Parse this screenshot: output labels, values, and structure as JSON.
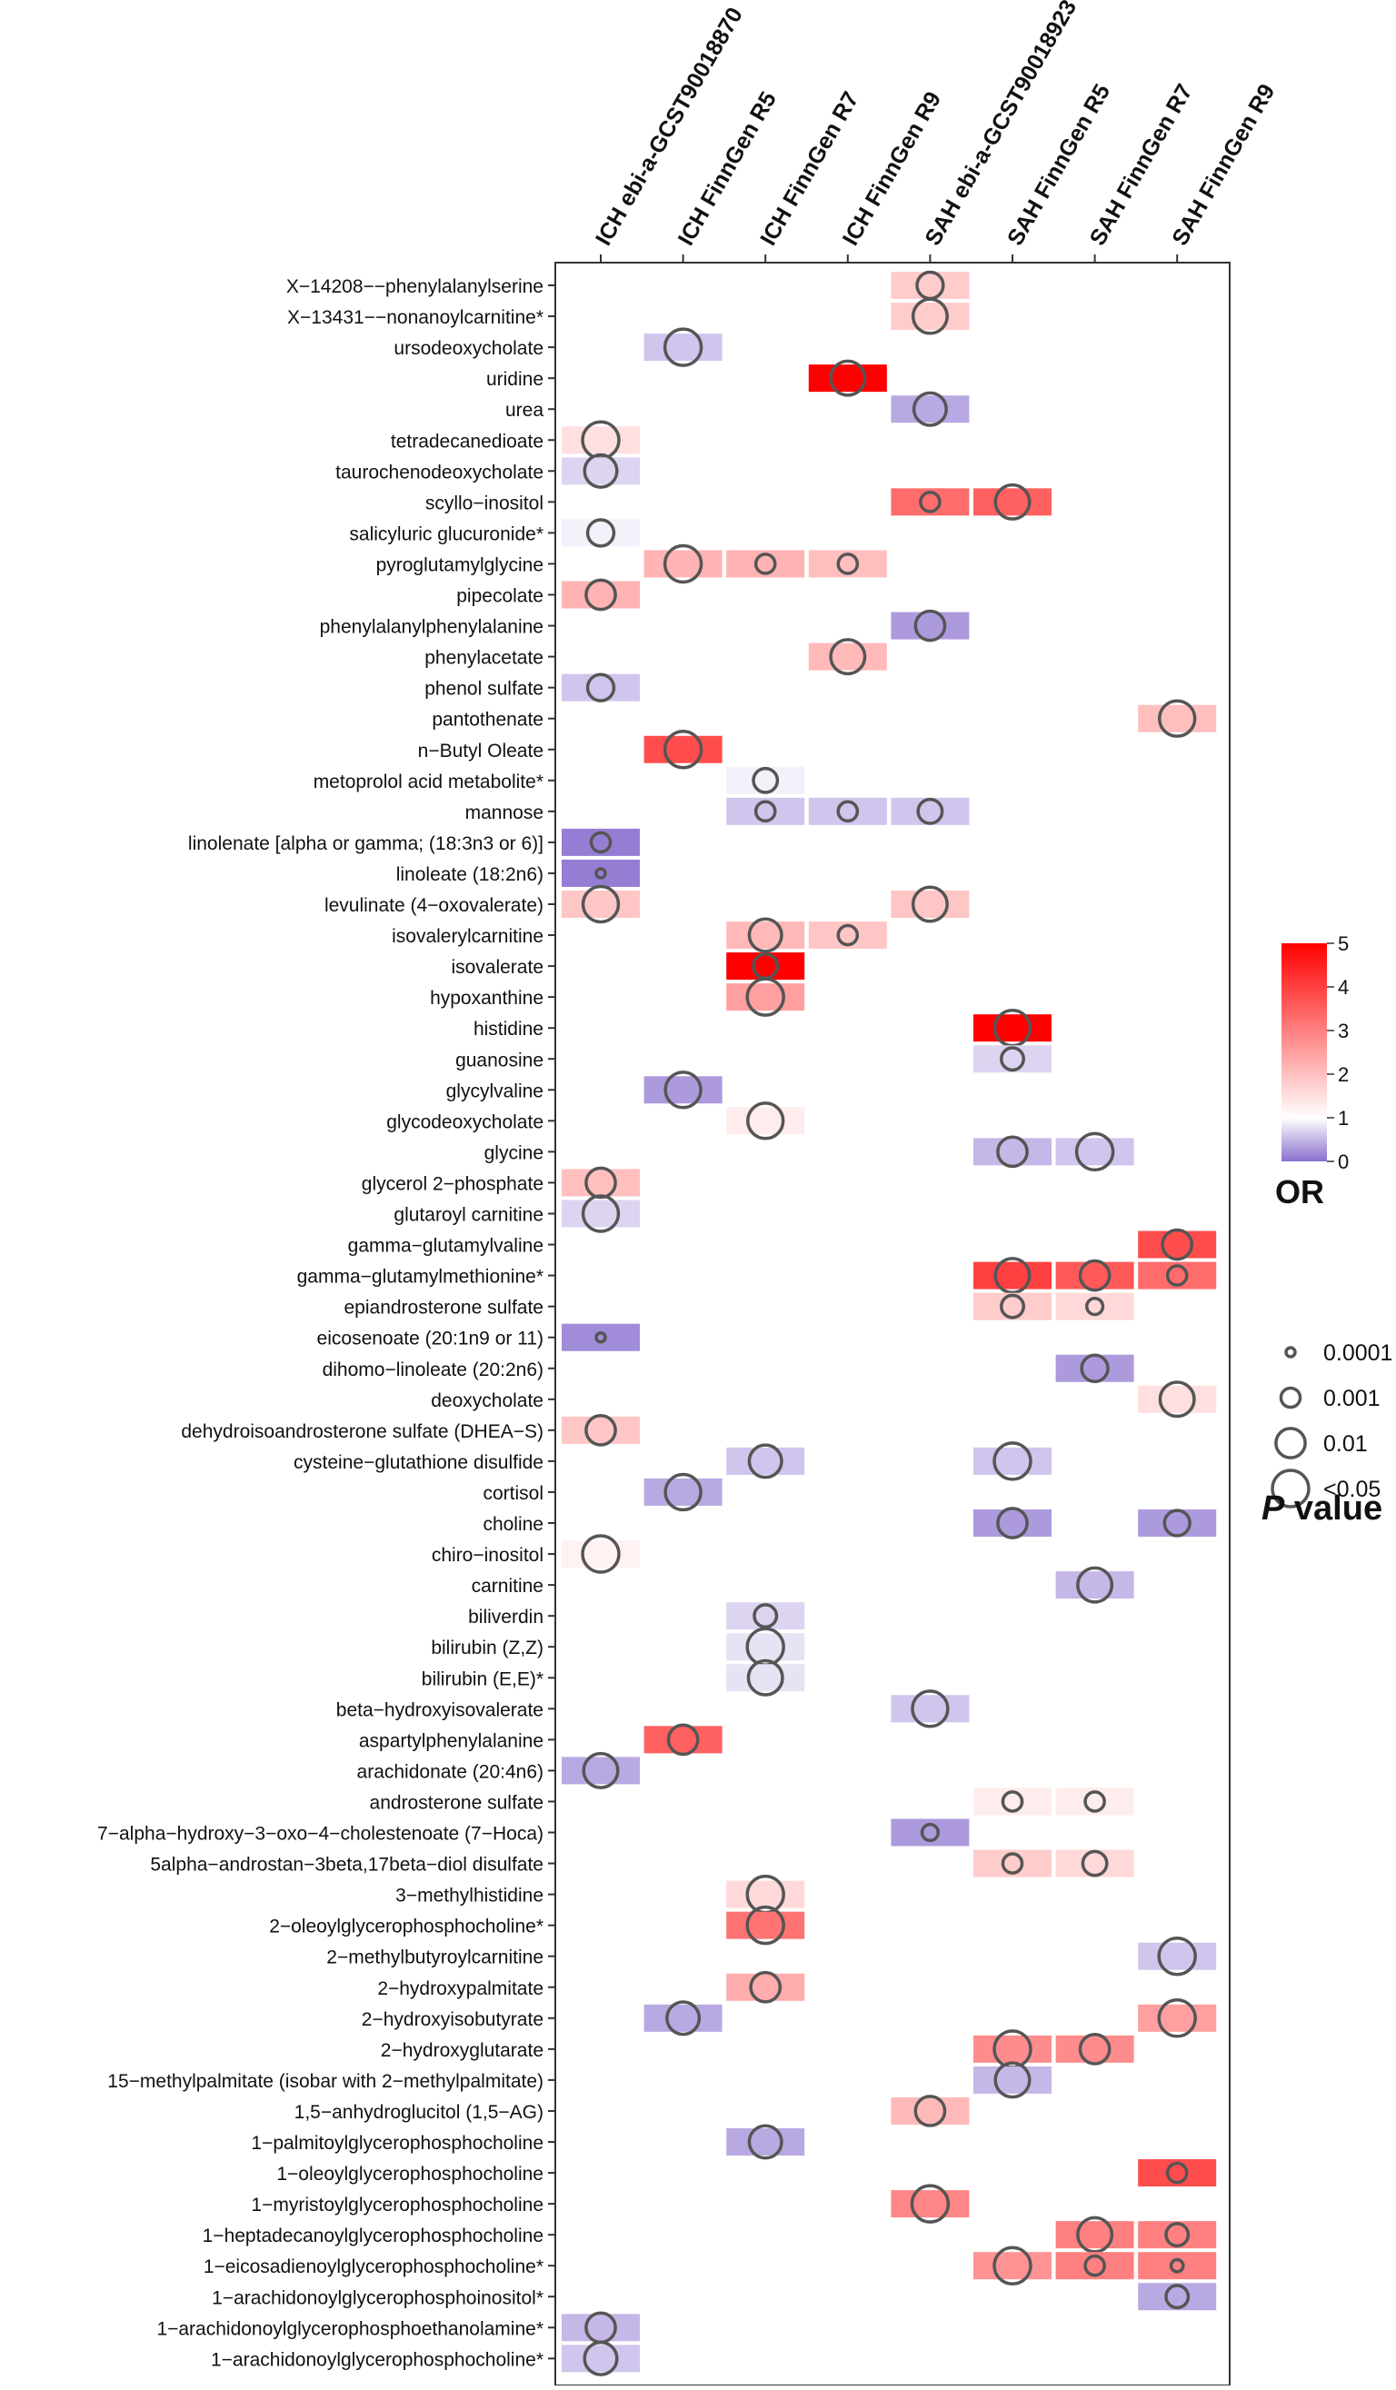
{
  "chart_data": {
    "type": "heatmap",
    "title": "",
    "columns": [
      "ICH ebi-a-GCST90018870",
      "ICH FinnGen R5",
      "ICH FinnGen R7",
      "ICH FinnGen R9",
      "SAH ebi-a-GCST90018923",
      "SAH FinnGen R5",
      "SAH FinnGen R7",
      "SAH FinnGen R9"
    ],
    "rows": [
      "X−14208−−phenylalanylserine",
      "X−13431−−nonanoylcarnitine*",
      "ursodeoxycholate",
      "uridine",
      "urea",
      "tetradecanedioate",
      "taurochenodeoxycholate",
      "scyllo−inositol",
      "salicyluric glucuronide*",
      "pyroglutamylglycine",
      "pipecolate",
      "phenylalanylphenylalanine",
      "phenylacetate",
      "phenol sulfate",
      "pantothenate",
      "n−Butyl Oleate",
      "metoprolol acid metabolite*",
      "mannose",
      "linolenate [alpha or gamma; (18:3n3 or 6)]",
      "linoleate (18:2n6)",
      "levulinate (4−oxovalerate)",
      "isovalerylcarnitine",
      "isovalerate",
      "hypoxanthine",
      "histidine",
      "guanosine",
      "glycylvaline",
      "glycodeoxycholate",
      "glycine",
      "glycerol 2−phosphate",
      "glutaroyl carnitine",
      "gamma−glutamylvaline",
      "gamma−glutamylmethionine*",
      "epiandrosterone sulfate",
      "eicosenoate (20:1n9 or 11)",
      "dihomo−linoleate (20:2n6)",
      "deoxycholate",
      "dehydroisoandrosterone sulfate (DHEA−S)",
      "cysteine−glutathione disulfide",
      "cortisol",
      "choline",
      "chiro−inositol",
      "carnitine",
      "biliverdin",
      "bilirubin (Z,Z)",
      "bilirubin (E,E)*",
      "beta−hydroxyisovalerate",
      "aspartylphenylalanine",
      "arachidonate (20:4n6)",
      "androsterone sulfate",
      "7−alpha−hydroxy−3−oxo−4−cholestenoate (7−Hoca)",
      "5alpha−androstan−3beta,17beta−diol disulfate",
      "3−methylhistidine",
      "2−oleoylglycerophosphocholine*",
      "2−methylbutyroylcarnitine",
      "2−hydroxypalmitate",
      "2−hydroxyisobutyrate",
      "2−hydroxyglutarate",
      "15−methylpalmitate (isobar with 2−methylpalmitate)",
      "1,5−anhydroglucitol (1,5−AG)",
      "1−palmitoylglycerophosphocholine",
      "1−oleoylglycerophosphocholine",
      "1−myristoylglycerophosphocholine",
      "1−heptadecanoylglycerophosphocholine",
      "1−eicosadienoylglycerophosphocholine*",
      "1−arachidonoylglycerophosphoinositol*",
      "1−arachidonoylglycerophosphoethanolamine*",
      "1−arachidonoylglycerophosphocholine*"
    ],
    "cells": [
      {
        "row": 0,
        "col": 4,
        "or": 1.8,
        "p": 0.005
      },
      {
        "row": 1,
        "col": 4,
        "or": 1.8,
        "p": 0.03
      },
      {
        "row": 2,
        "col": 1,
        "or": 0.6,
        "p": 0.05
      },
      {
        "row": 3,
        "col": 3,
        "or": 5.0,
        "p": 0.03
      },
      {
        "row": 4,
        "col": 4,
        "or": 0.4,
        "p": 0.02
      },
      {
        "row": 5,
        "col": 0,
        "or": 1.5,
        "p": 0.05
      },
      {
        "row": 6,
        "col": 0,
        "or": 0.7,
        "p": 0.02
      },
      {
        "row": 7,
        "col": 4,
        "or": 3.3,
        "p": 0.001
      },
      {
        "row": 7,
        "col": 5,
        "or": 3.5,
        "p": 0.03
      },
      {
        "row": 8,
        "col": 0,
        "or": 0.9,
        "p": 0.005
      },
      {
        "row": 9,
        "col": 1,
        "or": 2.2,
        "p": 0.05
      },
      {
        "row": 9,
        "col": 2,
        "or": 2.2,
        "p": 0.001
      },
      {
        "row": 9,
        "col": 3,
        "or": 2.0,
        "p": 0.001
      },
      {
        "row": 10,
        "col": 0,
        "or": 2.2,
        "p": 0.01
      },
      {
        "row": 11,
        "col": 4,
        "or": 0.3,
        "p": 0.01
      },
      {
        "row": 12,
        "col": 3,
        "or": 2.1,
        "p": 0.03
      },
      {
        "row": 13,
        "col": 0,
        "or": 0.6,
        "p": 0.005
      },
      {
        "row": 14,
        "col": 7,
        "or": 2.0,
        "p": 0.04
      },
      {
        "row": 15,
        "col": 1,
        "or": 3.8,
        "p": 0.05
      },
      {
        "row": 16,
        "col": 2,
        "or": 0.9,
        "p": 0.003
      },
      {
        "row": 17,
        "col": 2,
        "or": 0.6,
        "p": 0.001
      },
      {
        "row": 17,
        "col": 3,
        "or": 0.6,
        "p": 0.001
      },
      {
        "row": 17,
        "col": 4,
        "or": 0.6,
        "p": 0.003
      },
      {
        "row": 18,
        "col": 0,
        "or": 0.1,
        "p": 0.001
      },
      {
        "row": 19,
        "col": 0,
        "or": 0.1,
        "p": 0.0001
      },
      {
        "row": 20,
        "col": 0,
        "or": 1.9,
        "p": 0.04
      },
      {
        "row": 20,
        "col": 4,
        "or": 1.9,
        "p": 0.03
      },
      {
        "row": 21,
        "col": 2,
        "or": 2.1,
        "p": 0.02
      },
      {
        "row": 21,
        "col": 3,
        "or": 1.9,
        "p": 0.001
      },
      {
        "row": 22,
        "col": 2,
        "or": 5.0,
        "p": 0.003
      },
      {
        "row": 23,
        "col": 2,
        "or": 2.5,
        "p": 0.05
      },
      {
        "row": 24,
        "col": 5,
        "or": 5.0,
        "p": 0.04
      },
      {
        "row": 25,
        "col": 5,
        "or": 0.7,
        "p": 0.002
      },
      {
        "row": 26,
        "col": 1,
        "or": 0.3,
        "p": 0.04
      },
      {
        "row": 27,
        "col": 2,
        "or": 1.3,
        "p": 0.04
      },
      {
        "row": 28,
        "col": 5,
        "or": 0.5,
        "p": 0.01
      },
      {
        "row": 28,
        "col": 6,
        "or": 0.6,
        "p": 0.05
      },
      {
        "row": 29,
        "col": 0,
        "or": 2.0,
        "p": 0.01
      },
      {
        "row": 30,
        "col": 0,
        "or": 0.7,
        "p": 0.04
      },
      {
        "row": 31,
        "col": 7,
        "or": 3.8,
        "p": 0.01
      },
      {
        "row": 32,
        "col": 5,
        "or": 4.0,
        "p": 0.03
      },
      {
        "row": 32,
        "col": 6,
        "or": 3.6,
        "p": 0.01
      },
      {
        "row": 32,
        "col": 7,
        "or": 3.3,
        "p": 0.001
      },
      {
        "row": 33,
        "col": 5,
        "or": 1.8,
        "p": 0.002
      },
      {
        "row": 33,
        "col": 6,
        "or": 1.6,
        "p": 0.0005
      },
      {
        "row": 34,
        "col": 0,
        "or": 0.2,
        "p": 0.0001
      },
      {
        "row": 35,
        "col": 6,
        "or": 0.3,
        "p": 0.005
      },
      {
        "row": 36,
        "col": 7,
        "or": 1.5,
        "p": 0.03
      },
      {
        "row": 37,
        "col": 0,
        "or": 1.9,
        "p": 0.01
      },
      {
        "row": 38,
        "col": 2,
        "or": 0.6,
        "p": 0.02
      },
      {
        "row": 38,
        "col": 5,
        "or": 0.6,
        "p": 0.05
      },
      {
        "row": 39,
        "col": 1,
        "or": 0.4,
        "p": 0.04
      },
      {
        "row": 40,
        "col": 5,
        "or": 0.3,
        "p": 0.01
      },
      {
        "row": 40,
        "col": 7,
        "or": 0.3,
        "p": 0.004
      },
      {
        "row": 41,
        "col": 0,
        "or": 1.2,
        "p": 0.05
      },
      {
        "row": 42,
        "col": 6,
        "or": 0.5,
        "p": 0.03
      },
      {
        "row": 43,
        "col": 2,
        "or": 0.7,
        "p": 0.002
      },
      {
        "row": 44,
        "col": 2,
        "or": 0.8,
        "p": 0.05
      },
      {
        "row": 45,
        "col": 2,
        "or": 0.8,
        "p": 0.03
      },
      {
        "row": 46,
        "col": 4,
        "or": 0.6,
        "p": 0.04
      },
      {
        "row": 47,
        "col": 1,
        "or": 3.5,
        "p": 0.01
      },
      {
        "row": 48,
        "col": 0,
        "or": 0.4,
        "p": 0.03
      },
      {
        "row": 49,
        "col": 5,
        "or": 1.3,
        "p": 0.001
      },
      {
        "row": 49,
        "col": 6,
        "or": 1.3,
        "p": 0.001
      },
      {
        "row": 50,
        "col": 4,
        "or": 0.3,
        "p": 0.0005
      },
      {
        "row": 51,
        "col": 5,
        "or": 1.8,
        "p": 0.001
      },
      {
        "row": 51,
        "col": 6,
        "or": 1.6,
        "p": 0.003
      },
      {
        "row": 52,
        "col": 2,
        "or": 1.6,
        "p": 0.05
      },
      {
        "row": 53,
        "col": 2,
        "or": 3.2,
        "p": 0.05
      },
      {
        "row": 54,
        "col": 7,
        "or": 0.6,
        "p": 0.05
      },
      {
        "row": 55,
        "col": 2,
        "or": 2.3,
        "p": 0.01
      },
      {
        "row": 56,
        "col": 1,
        "or": 0.4,
        "p": 0.02
      },
      {
        "row": 56,
        "col": 7,
        "or": 2.5,
        "p": 0.05
      },
      {
        "row": 57,
        "col": 5,
        "or": 2.8,
        "p": 0.05
      },
      {
        "row": 57,
        "col": 6,
        "or": 2.8,
        "p": 0.01
      },
      {
        "row": 58,
        "col": 5,
        "or": 0.5,
        "p": 0.03
      },
      {
        "row": 59,
        "col": 4,
        "or": 2.1,
        "p": 0.01
      },
      {
        "row": 60,
        "col": 2,
        "or": 0.4,
        "p": 0.02
      },
      {
        "row": 61,
        "col": 7,
        "or": 3.8,
        "p": 0.001
      },
      {
        "row": 62,
        "col": 4,
        "or": 2.9,
        "p": 0.05
      },
      {
        "row": 63,
        "col": 6,
        "or": 3.0,
        "p": 0.03
      },
      {
        "row": 63,
        "col": 7,
        "or": 3.0,
        "p": 0.002
      },
      {
        "row": 64,
        "col": 5,
        "or": 2.7,
        "p": 0.05
      },
      {
        "row": 64,
        "col": 6,
        "or": 3.0,
        "p": 0.001
      },
      {
        "row": 64,
        "col": 7,
        "or": 3.0,
        "p": 0.0002
      },
      {
        "row": 65,
        "col": 7,
        "or": 0.4,
        "p": 0.002
      },
      {
        "row": 66,
        "col": 0,
        "or": 0.5,
        "p": 0.01
      },
      {
        "row": 67,
        "col": 0,
        "or": 0.6,
        "p": 0.02
      }
    ],
    "or_legend": {
      "title": "OR",
      "ticks": [
        "5",
        "4",
        "3",
        "2",
        "1",
        "0"
      ],
      "range": [
        0,
        5
      ],
      "colors": {
        "low": "#8a6fcf",
        "mid": "#ffffff",
        "high": "#ff0000"
      }
    },
    "p_legend": {
      "title_italic": "P",
      "title_rest": " value",
      "labels": [
        "0.0001",
        "0.001",
        "0.01",
        "<0.05"
      ],
      "p_values": [
        0.0001,
        0.001,
        0.01,
        0.05
      ]
    },
    "colors": {
      "circle_stroke": "#555555",
      "axis": "#333333",
      "text": "#111111"
    }
  }
}
